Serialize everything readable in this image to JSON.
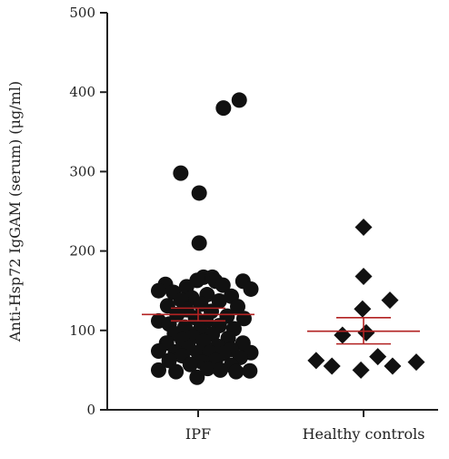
{
  "chart_data": {
    "type": "scatter",
    "subtype": "dot-plot-with-mean-sem",
    "title": "",
    "xlabel": "",
    "ylabel": "Anti-Hsp72 IgGAM (serum) (μg/ml)",
    "ylim": [
      0,
      500
    ],
    "yticks": [
      "0",
      "100",
      "200",
      "300",
      "400",
      "500"
    ],
    "categories": [
      "IPF",
      "Healthy controls"
    ],
    "grid": false,
    "legend": "none",
    "colors": {
      "points": "#111111",
      "mean_sem": "#b22222",
      "axis": "#222222"
    },
    "series": [
      {
        "category": "IPF",
        "marker": "circle",
        "mean": 120,
        "sem_upper": 128,
        "sem_lower": 112,
        "points": [
          {
            "x": 0.48,
            "y": 380
          },
          {
            "x": 0.78,
            "y": 390
          },
          {
            "x": -0.33,
            "y": 298
          },
          {
            "x": 0.02,
            "y": 273
          },
          {
            "x": 0.02,
            "y": 210
          },
          {
            "x": 0.1,
            "y": 167
          },
          {
            "x": 0.27,
            "y": 167
          },
          {
            "x": -0.02,
            "y": 163
          },
          {
            "x": 0.33,
            "y": 162
          },
          {
            "x": 0.85,
            "y": 162
          },
          {
            "x": -0.62,
            "y": 158
          },
          {
            "x": 0.47,
            "y": 157
          },
          {
            "x": -0.22,
            "y": 155
          },
          {
            "x": 1.0,
            "y": 152
          },
          {
            "x": -0.75,
            "y": 150
          },
          {
            "x": -0.47,
            "y": 148
          },
          {
            "x": 0.17,
            "y": 145
          },
          {
            "x": 0.63,
            "y": 143
          },
          {
            "x": -0.12,
            "y": 141
          },
          {
            "x": -0.32,
            "y": 138
          },
          {
            "x": 0.4,
            "y": 137
          },
          {
            "x": 0.05,
            "y": 133
          },
          {
            "x": -0.58,
            "y": 131
          },
          {
            "x": 0.75,
            "y": 130
          },
          {
            "x": -0.22,
            "y": 126
          },
          {
            "x": 0.25,
            "y": 124
          },
          {
            "x": -0.4,
            "y": 120
          },
          {
            "x": 0.55,
            "y": 118
          },
          {
            "x": -0.05,
            "y": 116
          },
          {
            "x": 0.87,
            "y": 115
          },
          {
            "x": -0.75,
            "y": 112
          },
          {
            "x": 0.15,
            "y": 112
          },
          {
            "x": -0.55,
            "y": 108
          },
          {
            "x": 0.4,
            "y": 106
          },
          {
            "x": -0.25,
            "y": 104
          },
          {
            "x": 0.68,
            "y": 102
          },
          {
            "x": 0.03,
            "y": 100
          },
          {
            "x": -0.45,
            "y": 96
          },
          {
            "x": 0.27,
            "y": 95
          },
          {
            "x": -0.1,
            "y": 92
          },
          {
            "x": 0.57,
            "y": 90
          },
          {
            "x": -0.3,
            "y": 88
          },
          {
            "x": 0.1,
            "y": 86
          },
          {
            "x": -0.6,
            "y": 84
          },
          {
            "x": 0.85,
            "y": 84
          },
          {
            "x": 0.37,
            "y": 80
          },
          {
            "x": -0.18,
            "y": 78
          },
          {
            "x": 0.63,
            "y": 76
          },
          {
            "x": -0.75,
            "y": 74
          },
          {
            "x": -0.43,
            "y": 73
          },
          {
            "x": 0.0,
            "y": 72
          },
          {
            "x": 0.22,
            "y": 72
          },
          {
            "x": 0.48,
            "y": 71
          },
          {
            "x": 1.0,
            "y": 72
          },
          {
            "x": -0.3,
            "y": 68
          },
          {
            "x": 0.8,
            "y": 66
          },
          {
            "x": -0.55,
            "y": 62
          },
          {
            "x": 0.33,
            "y": 62
          },
          {
            "x": 0.08,
            "y": 60
          },
          {
            "x": -0.15,
            "y": 57
          },
          {
            "x": 0.63,
            "y": 56
          },
          {
            "x": -0.75,
            "y": 50
          },
          {
            "x": -0.42,
            "y": 48
          },
          {
            "x": 0.18,
            "y": 52
          },
          {
            "x": 0.42,
            "y": 50
          },
          {
            "x": 0.72,
            "y": 48
          },
          {
            "x": 0.98,
            "y": 49
          },
          {
            "x": -0.02,
            "y": 41
          }
        ]
      },
      {
        "category": "Healthy controls",
        "marker": "diamond",
        "mean": 99,
        "sem_upper": 116,
        "sem_lower": 83,
        "points": [
          {
            "x": 0.0,
            "y": 230
          },
          {
            "x": 0.0,
            "y": 168
          },
          {
            "x": 0.5,
            "y": 138
          },
          {
            "x": -0.02,
            "y": 127
          },
          {
            "x": 0.05,
            "y": 97
          },
          {
            "x": -0.4,
            "y": 94
          },
          {
            "x": 0.27,
            "y": 67
          },
          {
            "x": -0.9,
            "y": 62
          },
          {
            "x": 1.0,
            "y": 60
          },
          {
            "x": -0.6,
            "y": 55
          },
          {
            "x": 0.55,
            "y": 55
          },
          {
            "x": -0.05,
            "y": 50
          }
        ]
      }
    ]
  }
}
